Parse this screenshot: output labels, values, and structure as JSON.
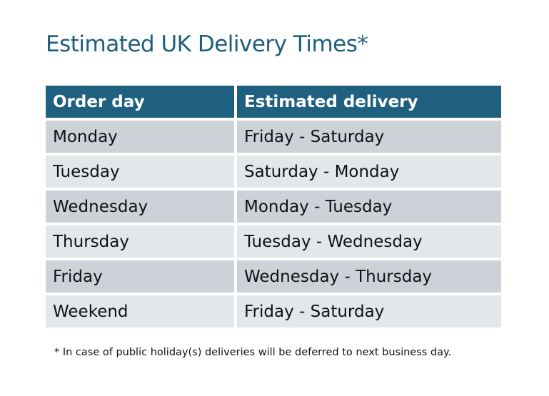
{
  "title": "Estimated UK Delivery Times*",
  "table": {
    "headers": [
      "Order day",
      "Estimated delivery"
    ],
    "rows": [
      [
        "Monday",
        "Friday - Saturday"
      ],
      [
        "Tuesday",
        "Saturday - Monday"
      ],
      [
        "Wednesday",
        "Monday - Tuesday"
      ],
      [
        "Thursday",
        "Tuesday - Wednesday"
      ],
      [
        "Friday",
        "Wednesday - Thursday"
      ],
      [
        "Weekend",
        "Friday - Saturday"
      ]
    ]
  },
  "footnote": "* In case of public holiday(s) deliveries will be deferred to next business day.",
  "colors": {
    "header": "#1f6080",
    "title": "#1f5f7e",
    "row_dark": "#ced2d8",
    "row_light": "#e4e7ea"
  }
}
